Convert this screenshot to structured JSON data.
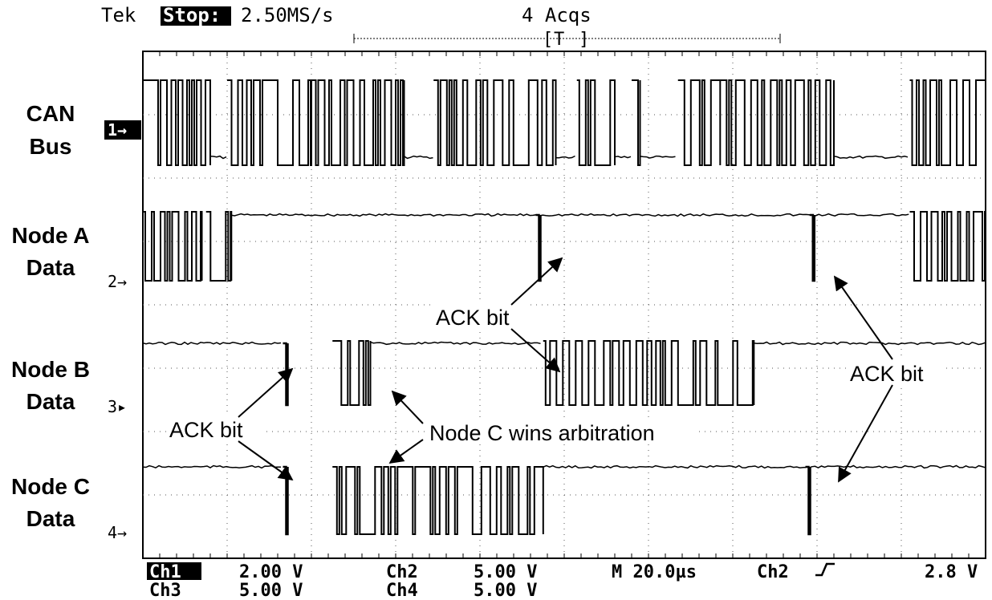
{
  "header": {
    "brand": "Tek",
    "run_state": "Stop:",
    "sample_rate": "2.50MS/s",
    "acquisitions": "4 Acqs",
    "trigger_marker": "T"
  },
  "channel_markers": [
    "1→",
    "2→",
    "3▸",
    "4→"
  ],
  "trace_labels": [
    [
      "CAN",
      "Bus"
    ],
    [
      "Node A",
      "Data"
    ],
    [
      "Node B",
      "Data"
    ],
    [
      "Node C",
      "Data"
    ]
  ],
  "annotations": {
    "ack_a": "ACK bit",
    "ack_b": "ACK bit",
    "ack_right": "ACK bit",
    "arbitration": "Node C wins arbitration"
  },
  "footer": {
    "ch1_label": "Ch1",
    "ch1_scale": "2.00 V",
    "ch2_label": "Ch2",
    "ch2_scale": "5.00 V",
    "ch3_label": "Ch3",
    "ch3_scale": "5.00 V",
    "ch4_label": "Ch4",
    "ch4_scale": "5.00 V",
    "timebase": "M 20.0µs",
    "trigger_source": "Ch2",
    "trigger_slope_icon": "rising-edge-icon",
    "trigger_level": "2.8 V"
  },
  "chart_data": {
    "type": "line",
    "title": "",
    "xlabel": "",
    "ylabel": "",
    "time_unit": "µs",
    "time_per_division": 20,
    "xlim": [
      0,
      200
    ],
    "divisions": {
      "horizontal": 10,
      "vertical": 8
    },
    "grid": true,
    "series": [
      {
        "name": "CAN Bus",
        "busy_intervals": [
          [
            0,
            16
          ],
          [
            20,
            40
          ],
          [
            40,
            62
          ],
          [
            69,
            98
          ],
          [
            103,
            112
          ],
          [
            116,
            118
          ],
          [
            127,
            137
          ],
          [
            137,
            164
          ],
          [
            182,
            200
          ]
        ],
        "idle_intervals": [
          [
            16,
            20
          ],
          [
            62,
            69
          ],
          [
            98,
            103
          ],
          [
            112,
            116
          ],
          [
            118,
            127
          ],
          [
            164,
            182
          ]
        ]
      },
      {
        "name": "Node A Data",
        "busy_intervals": [
          [
            0,
            14
          ],
          [
            15,
            21
          ]
        ],
        "idle_intervals": [
          [
            21,
            182
          ]
        ],
        "pulses": [
          94,
          159
        ],
        "tail_busy": [
          [
            182,
            200
          ]
        ]
      },
      {
        "name": "Node B Data",
        "busy_intervals": [
          [
            45,
            54
          ],
          [
            95,
            145
          ]
        ],
        "idle_intervals": [
          [
            0,
            33
          ],
          [
            54,
            95
          ],
          [
            145,
            200
          ]
        ],
        "pulses": [
          34
        ]
      },
      {
        "name": "Node C Data",
        "busy_intervals": [
          [
            45,
            95
          ]
        ],
        "idle_intervals": [
          [
            0,
            33
          ],
          [
            95,
            158
          ],
          [
            158,
            200
          ]
        ],
        "pulses": [
          34,
          158
        ]
      }
    ],
    "annotations": [
      {
        "text": "ACK bit",
        "series": "Node A Data",
        "x": 94
      },
      {
        "text": "ACK bit",
        "series": "Node B Data",
        "x": 95
      },
      {
        "text": "ACK bit",
        "series": "Node A Data",
        "x": 159
      },
      {
        "text": "ACK bit",
        "series": "Node C Data",
        "x": 159
      },
      {
        "text": "ACK bit",
        "series": "Node B Data",
        "x": 34
      },
      {
        "text": "ACK bit",
        "series": "Node C Data",
        "x": 34
      },
      {
        "text": "Node C wins arbitration",
        "series": "Node B Data",
        "x": 54
      },
      {
        "text": "Node C wins arbitration",
        "series": "Node C Data",
        "x": 54
      }
    ]
  }
}
